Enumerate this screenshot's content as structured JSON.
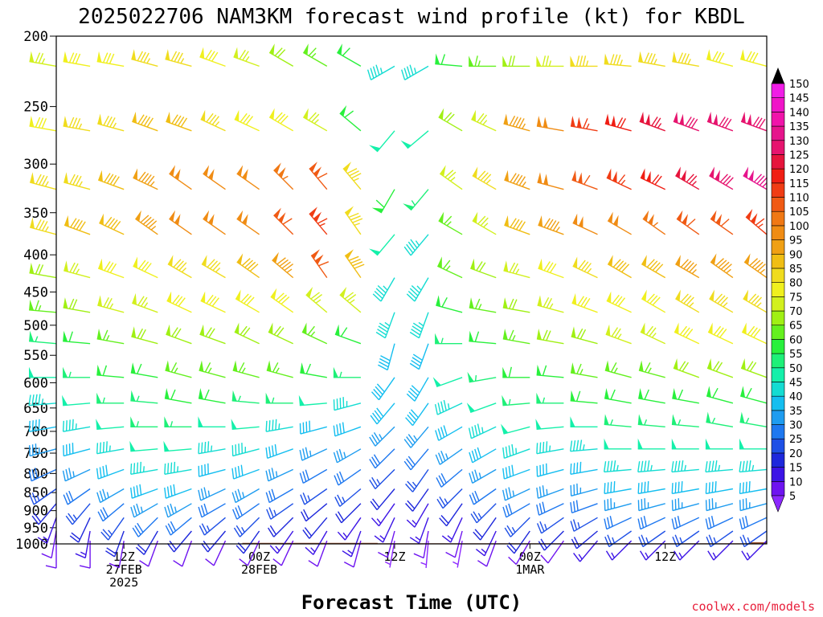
{
  "chart_data": {
    "type": "wind_barb_time_height",
    "title": "2025022706 NAM3KM forecast wind profile (kt) for KBDL",
    "xlabel": "Forecast Time (UTC)",
    "credit": "coolwx.com/models",
    "y_axis": {
      "label": "",
      "scale": "log",
      "range": [
        1000,
        200
      ],
      "ticks": [
        200,
        250,
        300,
        350,
        400,
        450,
        500,
        550,
        600,
        650,
        700,
        750,
        800,
        850,
        900,
        950,
        1000
      ]
    },
    "x_axis": {
      "range": [
        "2025-02-27T06Z",
        "2025-03-01T21Z"
      ],
      "ticks": [
        {
          "time": "2025-02-27T12Z",
          "lines": [
            "12Z",
            "27FEB",
            "2025"
          ]
        },
        {
          "time": "2025-02-28T00Z",
          "lines": [
            "00Z",
            "28FEB"
          ]
        },
        {
          "time": "2025-02-28T12Z",
          "lines": [
            "12Z"
          ]
        },
        {
          "time": "2025-03-01T00Z",
          "lines": [
            "00Z",
            "1MAR"
          ]
        },
        {
          "time": "2025-03-01T12Z",
          "lines": [
            "12Z"
          ]
        }
      ]
    },
    "colorbar": {
      "levels": [
        5,
        10,
        15,
        20,
        25,
        30,
        35,
        40,
        45,
        50,
        55,
        60,
        65,
        70,
        75,
        80,
        85,
        90,
        95,
        100,
        105,
        110,
        115,
        120,
        125,
        130,
        135,
        140,
        145,
        150
      ],
      "colors": [
        "#8c28ff",
        "#6e14f0",
        "#3c14e6",
        "#1e28dc",
        "#1e50e6",
        "#1e78f0",
        "#1e9cf0",
        "#14bef0",
        "#14dcd2",
        "#14f0aa",
        "#1ef078",
        "#28f03c",
        "#64f01e",
        "#a0f014",
        "#d2f01e",
        "#f0f01e",
        "#f0dc1e",
        "#f0be14",
        "#f0a014",
        "#f08c14",
        "#f07814",
        "#f05a14",
        "#f03c14",
        "#f01e14",
        "#e6143c",
        "#e6146e",
        "#e6148c",
        "#f014aa",
        "#f014c8",
        "#f01ee6"
      ],
      "unit": "kt"
    },
    "timestep_hours": 3,
    "times_utc": [
      "2025-02-27T06Z",
      "2025-02-27T09Z",
      "2025-02-27T12Z",
      "2025-02-27T15Z",
      "2025-02-27T18Z",
      "2025-02-27T21Z",
      "2025-02-28T00Z",
      "2025-02-28T03Z",
      "2025-02-28T06Z",
      "2025-02-28T09Z",
      "2025-02-28T12Z",
      "2025-02-28T15Z",
      "2025-02-28T18Z",
      "2025-02-28T21Z",
      "2025-03-01T00Z",
      "2025-03-01T03Z",
      "2025-03-01T06Z",
      "2025-03-01T09Z",
      "2025-03-01T12Z",
      "2025-03-01T15Z",
      "2025-03-01T18Z",
      "2025-03-01T21Z"
    ],
    "pressure_levels": [
      {
        "p": 220,
        "dir": [
          280,
          280,
          280,
          285,
          285,
          290,
          290,
          300,
          300,
          300,
          240,
          240,
          275,
          270,
          270,
          270,
          270,
          275,
          280,
          280,
          285,
          285
        ],
        "spd": [
          75,
          80,
          80,
          85,
          85,
          80,
          75,
          70,
          65,
          60,
          45,
          45,
          60,
          65,
          70,
          75,
          85,
          85,
          85,
          85,
          80,
          80
        ]
      },
      {
        "p": 270,
        "dir": [
          280,
          280,
          285,
          290,
          290,
          295,
          295,
          300,
          300,
          310,
          220,
          230,
          300,
          295,
          285,
          280,
          280,
          285,
          290,
          290,
          290,
          290
        ],
        "spd": [
          80,
          85,
          85,
          90,
          90,
          85,
          80,
          80,
          75,
          60,
          50,
          50,
          70,
          75,
          95,
          100,
          115,
          120,
          125,
          130,
          130,
          130
        ]
      },
      {
        "p": 325,
        "dir": [
          285,
          285,
          290,
          295,
          305,
          305,
          305,
          315,
          320,
          320,
          210,
          220,
          305,
          300,
          290,
          285,
          290,
          295,
          295,
          300,
          300,
          300
        ],
        "spd": [
          85,
          85,
          90,
          95,
          100,
          100,
          100,
          105,
          110,
          85,
          60,
          55,
          75,
          85,
          95,
          100,
          110,
          115,
          120,
          125,
          130,
          135
        ]
      },
      {
        "p": 375,
        "dir": [
          285,
          290,
          295,
          305,
          305,
          305,
          305,
          315,
          320,
          325,
          220,
          220,
          300,
          300,
          290,
          290,
          295,
          300,
          305,
          305,
          305,
          310
        ],
        "spd": [
          85,
          90,
          90,
          95,
          100,
          100,
          100,
          110,
          115,
          85,
          50,
          45,
          65,
          75,
          90,
          95,
          100,
          100,
          105,
          110,
          110,
          115
        ]
      },
      {
        "p": 430,
        "dir": [
          280,
          285,
          290,
          295,
          300,
          300,
          305,
          310,
          325,
          325,
          210,
          210,
          295,
          290,
          285,
          290,
          295,
          300,
          300,
          300,
          305,
          305
        ],
        "spd": [
          70,
          75,
          80,
          80,
          85,
          85,
          90,
          95,
          110,
          90,
          45,
          45,
          65,
          70,
          75,
          80,
          85,
          90,
          90,
          95,
          95,
          95
        ]
      },
      {
        "p": 480,
        "dir": [
          275,
          280,
          285,
          290,
          295,
          295,
          300,
          305,
          310,
          310,
          200,
          200,
          285,
          280,
          280,
          285,
          290,
          295,
          300,
          300,
          300,
          300
        ],
        "spd": [
          65,
          70,
          75,
          75,
          80,
          80,
          80,
          80,
          75,
          75,
          45,
          45,
          60,
          65,
          70,
          75,
          80,
          80,
          80,
          85,
          85,
          85
        ]
      },
      {
        "p": 530,
        "dir": [
          275,
          275,
          280,
          285,
          290,
          290,
          295,
          295,
          295,
          290,
          195,
          200,
          270,
          275,
          280,
          280,
          285,
          290,
          295,
          295,
          295,
          295
        ],
        "spd": [
          55,
          60,
          65,
          70,
          70,
          70,
          70,
          70,
          65,
          60,
          40,
          40,
          55,
          60,
          65,
          70,
          70,
          75,
          75,
          80,
          80,
          80
        ]
      },
      {
        "p": 590,
        "dir": [
          270,
          270,
          275,
          280,
          285,
          285,
          285,
          285,
          280,
          270,
          215,
          210,
          250,
          260,
          270,
          275,
          280,
          285,
          285,
          290,
          290,
          290
        ],
        "spd": [
          50,
          55,
          60,
          60,
          65,
          65,
          65,
          65,
          60,
          55,
          40,
          40,
          50,
          55,
          60,
          60,
          65,
          65,
          65,
          70,
          70,
          70
        ]
      },
      {
        "p": 640,
        "dir": [
          265,
          265,
          270,
          275,
          280,
          280,
          275,
          270,
          265,
          255,
          220,
          215,
          245,
          250,
          265,
          270,
          275,
          280,
          280,
          280,
          285,
          285
        ],
        "spd": [
          45,
          50,
          55,
          55,
          60,
          60,
          55,
          55,
          50,
          45,
          40,
          40,
          45,
          50,
          55,
          55,
          60,
          60,
          60,
          60,
          60,
          60
        ]
      },
      {
        "p": 690,
        "dir": [
          260,
          260,
          265,
          270,
          270,
          270,
          265,
          260,
          255,
          250,
          225,
          220,
          240,
          245,
          255,
          265,
          270,
          275,
          275,
          275,
          280,
          280
        ],
        "spd": [
          40,
          45,
          50,
          55,
          55,
          50,
          50,
          45,
          40,
          40,
          35,
          35,
          40,
          45,
          50,
          50,
          50,
          55,
          55,
          55,
          55,
          55
        ]
      },
      {
        "p": 740,
        "dir": [
          255,
          255,
          260,
          265,
          265,
          260,
          255,
          250,
          245,
          240,
          225,
          220,
          235,
          240,
          250,
          260,
          265,
          270,
          270,
          270,
          270,
          270
        ],
        "spd": [
          35,
          40,
          45,
          50,
          50,
          45,
          45,
          40,
          35,
          35,
          30,
          30,
          35,
          40,
          45,
          45,
          45,
          50,
          50,
          50,
          50,
          50
        ]
      },
      {
        "p": 790,
        "dir": [
          245,
          245,
          250,
          260,
          260,
          255,
          250,
          245,
          240,
          235,
          225,
          215,
          230,
          240,
          250,
          255,
          260,
          265,
          265,
          265,
          265,
          265
        ],
        "spd": [
          30,
          35,
          40,
          45,
          45,
          40,
          40,
          35,
          30,
          30,
          25,
          25,
          30,
          35,
          40,
          40,
          40,
          45,
          45,
          45,
          45,
          45
        ]
      },
      {
        "p": 840,
        "dir": [
          235,
          235,
          240,
          250,
          250,
          245,
          240,
          240,
          235,
          230,
          220,
          215,
          225,
          235,
          245,
          250,
          255,
          260,
          260,
          260,
          260,
          260
        ],
        "spd": [
          25,
          30,
          35,
          40,
          40,
          35,
          35,
          30,
          25,
          25,
          20,
          20,
          25,
          30,
          35,
          35,
          35,
          40,
          40,
          40,
          40,
          40
        ]
      },
      {
        "p": 880,
        "dir": [
          220,
          220,
          230,
          240,
          240,
          240,
          235,
          235,
          230,
          225,
          215,
          210,
          215,
          225,
          240,
          245,
          250,
          255,
          255,
          255,
          255,
          255
        ],
        "spd": [
          20,
          25,
          30,
          35,
          35,
          30,
          30,
          25,
          20,
          20,
          15,
          15,
          20,
          25,
          30,
          30,
          30,
          35,
          35,
          35,
          35,
          35
        ]
      },
      {
        "p": 920,
        "dir": [
          200,
          205,
          215,
          225,
          230,
          230,
          225,
          225,
          220,
          215,
          205,
          200,
          205,
          215,
          225,
          235,
          240,
          245,
          245,
          245,
          245,
          245
        ],
        "spd": [
          15,
          20,
          25,
          30,
          30,
          25,
          25,
          20,
          20,
          15,
          15,
          15,
          15,
          20,
          25,
          25,
          25,
          30,
          30,
          30,
          30,
          30
        ]
      },
      {
        "p": 960,
        "dir": [
          190,
          190,
          200,
          210,
          220,
          220,
          215,
          215,
          210,
          200,
          195,
          190,
          195,
          205,
          215,
          225,
          230,
          235,
          235,
          235,
          235,
          235
        ],
        "spd": [
          10,
          15,
          20,
          20,
          20,
          20,
          20,
          15,
          15,
          15,
          10,
          10,
          10,
          15,
          20,
          20,
          20,
          25,
          25,
          25,
          25,
          25
        ]
      },
      {
        "p": 990,
        "dir": [
          180,
          180,
          190,
          200,
          200,
          205,
          205,
          205,
          200,
          195,
          190,
          185,
          190,
          200,
          210,
          215,
          220,
          225,
          225,
          225,
          225,
          225
        ],
        "spd": [
          10,
          10,
          10,
          10,
          10,
          10,
          10,
          10,
          10,
          10,
          5,
          5,
          5,
          10,
          10,
          10,
          15,
          15,
          15,
          15,
          15,
          15
        ]
      }
    ],
    "surface_pressure": [
      1001,
      1001,
      1000,
      999,
      999,
      999,
      997,
      997,
      997,
      997,
      998,
      998,
      998,
      998,
      998,
      998,
      998,
      998,
      998,
      998,
      998,
      995
    ],
    "terrain_color": "#99512b"
  }
}
